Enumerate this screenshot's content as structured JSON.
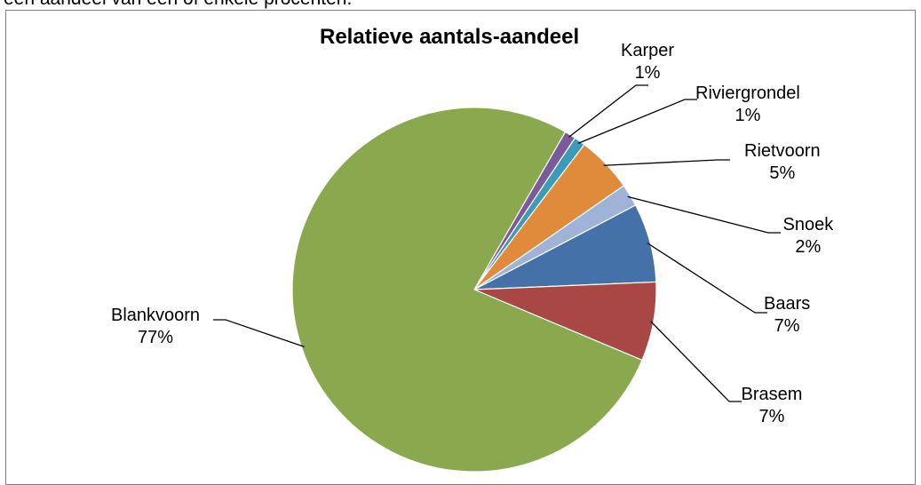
{
  "context_text": "een aandeel van één of enkele procenten.",
  "chart_data": {
    "type": "pie",
    "title": "Relatieve aantals-aandeel",
    "slices": [
      {
        "name": "Karper",
        "value": 1,
        "label": "1%",
        "color": "#7b5a9a"
      },
      {
        "name": "Riviergrondel",
        "value": 1,
        "label": "1%",
        "color": "#3c9bb8"
      },
      {
        "name": "Rietvoorn",
        "value": 5,
        "label": "5%",
        "color": "#e08a3c"
      },
      {
        "name": "Snoek",
        "value": 2,
        "label": "2%",
        "color": "#9fb3d9"
      },
      {
        "name": "Baars",
        "value": 7,
        "label": "7%",
        "color": "#4472a8"
      },
      {
        "name": "Brasem",
        "value": 7,
        "label": "7%",
        "color": "#a94745"
      },
      {
        "name": "Blankvoorn",
        "value": 77,
        "label": "77%",
        "color": "#8aa84d"
      }
    ],
    "legend": "none"
  }
}
